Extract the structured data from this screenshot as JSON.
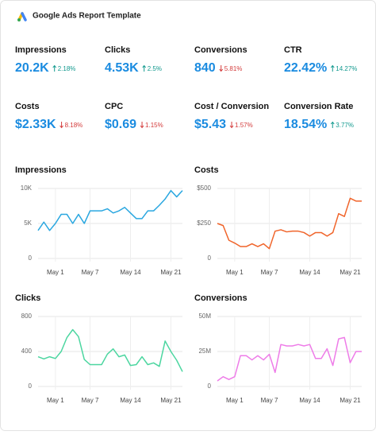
{
  "header": {
    "title": "Google Ads Report Template"
  },
  "kpis": [
    {
      "label": "Impressions",
      "value": "20.2K",
      "change": "2.18%",
      "direction": "up"
    },
    {
      "label": "Clicks",
      "value": "4.53K",
      "change": "2.5%",
      "direction": "up"
    },
    {
      "label": "Conversions",
      "value": "840",
      "change": "5.81%",
      "direction": "down"
    },
    {
      "label": "CTR",
      "value": "22.42%",
      "change": "14.27%",
      "direction": "up"
    },
    {
      "label": "Costs",
      "value": "$2.33K",
      "change": "8.18%",
      "direction": "down"
    },
    {
      "label": "CPC",
      "value": "$0.69",
      "change": "1.15%",
      "direction": "down"
    },
    {
      "label": "Cost / Conversion",
      "value": "$5.43",
      "change": "1.57%",
      "direction": "down"
    },
    {
      "label": "Conversion Rate",
      "value": "18.54%",
      "change": "3.77%",
      "direction": "up"
    }
  ],
  "chart_data": [
    {
      "type": "line",
      "title": "Impressions",
      "color": "#2aa7e0",
      "categories": [
        null,
        null,
        null,
        "May 1",
        null,
        null,
        null,
        null,
        null,
        "May 7",
        null,
        null,
        null,
        null,
        null,
        null,
        "May 14",
        null,
        null,
        null,
        null,
        null,
        null,
        "May 21",
        null,
        null
      ],
      "values": [
        4000,
        5200,
        4000,
        5000,
        6300,
        6300,
        5000,
        6300,
        5000,
        6800,
        6800,
        6800,
        7100,
        6500,
        6800,
        7300,
        6500,
        5700,
        5700,
        6800,
        6800,
        7600,
        8500,
        9700,
        8800,
        9700
      ],
      "ylim": [
        0,
        10000
      ],
      "yticks": [
        0,
        {
          "value": 5000,
          "label": "5K"
        },
        {
          "value": 10000,
          "label": "10K"
        }
      ],
      "grid": true
    },
    {
      "type": "line",
      "title": "Costs",
      "color": "#f0642a",
      "categories": [
        null,
        null,
        null,
        "May 1",
        null,
        null,
        null,
        null,
        null,
        "May 7",
        null,
        null,
        null,
        null,
        null,
        null,
        "May 14",
        null,
        null,
        null,
        null,
        null,
        null,
        "May 21",
        null,
        null
      ],
      "values": [
        250,
        235,
        130,
        110,
        85,
        85,
        105,
        85,
        105,
        70,
        195,
        205,
        190,
        195,
        195,
        185,
        160,
        185,
        185,
        160,
        185,
        320,
        300,
        430,
        410,
        410
      ],
      "ylim": [
        0,
        500
      ],
      "yticks": [
        0,
        {
          "value": 250,
          "label": "$250"
        },
        {
          "value": 500,
          "label": "$500"
        }
      ],
      "grid": true
    },
    {
      "type": "line",
      "title": "Clicks",
      "color": "#4cd6a0",
      "categories": [
        null,
        null,
        null,
        "May 1",
        null,
        null,
        null,
        null,
        null,
        "May 7",
        null,
        null,
        null,
        null,
        null,
        null,
        "May 14",
        null,
        null,
        null,
        null,
        null,
        null,
        "May 21",
        null,
        null
      ],
      "values": [
        340,
        315,
        340,
        320,
        400,
        560,
        650,
        570,
        310,
        250,
        250,
        250,
        370,
        430,
        340,
        360,
        240,
        250,
        340,
        250,
        270,
        230,
        520,
        400,
        300,
        170
      ],
      "ylim": [
        0,
        800
      ],
      "yticks": [
        0,
        400,
        800
      ],
      "grid": true
    },
    {
      "type": "line",
      "title": "Conversions",
      "color": "#ee7ce8",
      "categories": [
        null,
        null,
        null,
        "May 1",
        null,
        null,
        null,
        null,
        null,
        "May 7",
        null,
        null,
        null,
        null,
        null,
        null,
        "May 14",
        null,
        null,
        null,
        null,
        null,
        null,
        "May 21",
        null,
        null
      ],
      "values": [
        4000000,
        7000000,
        5000000,
        7000000,
        22000000,
        22000000,
        19000000,
        22000000,
        19000000,
        23000000,
        10000000,
        30000000,
        29000000,
        29000000,
        30000000,
        29000000,
        30000000,
        20000000,
        20000000,
        27000000,
        15000000,
        34000000,
        35000000,
        17000000,
        25000000,
        25000000
      ],
      "ylim": [
        0,
        50000000
      ],
      "yticks": [
        0,
        {
          "value": 25000000,
          "label": "25M"
        },
        {
          "value": 50000000,
          "label": "50M"
        }
      ],
      "grid": true
    }
  ]
}
